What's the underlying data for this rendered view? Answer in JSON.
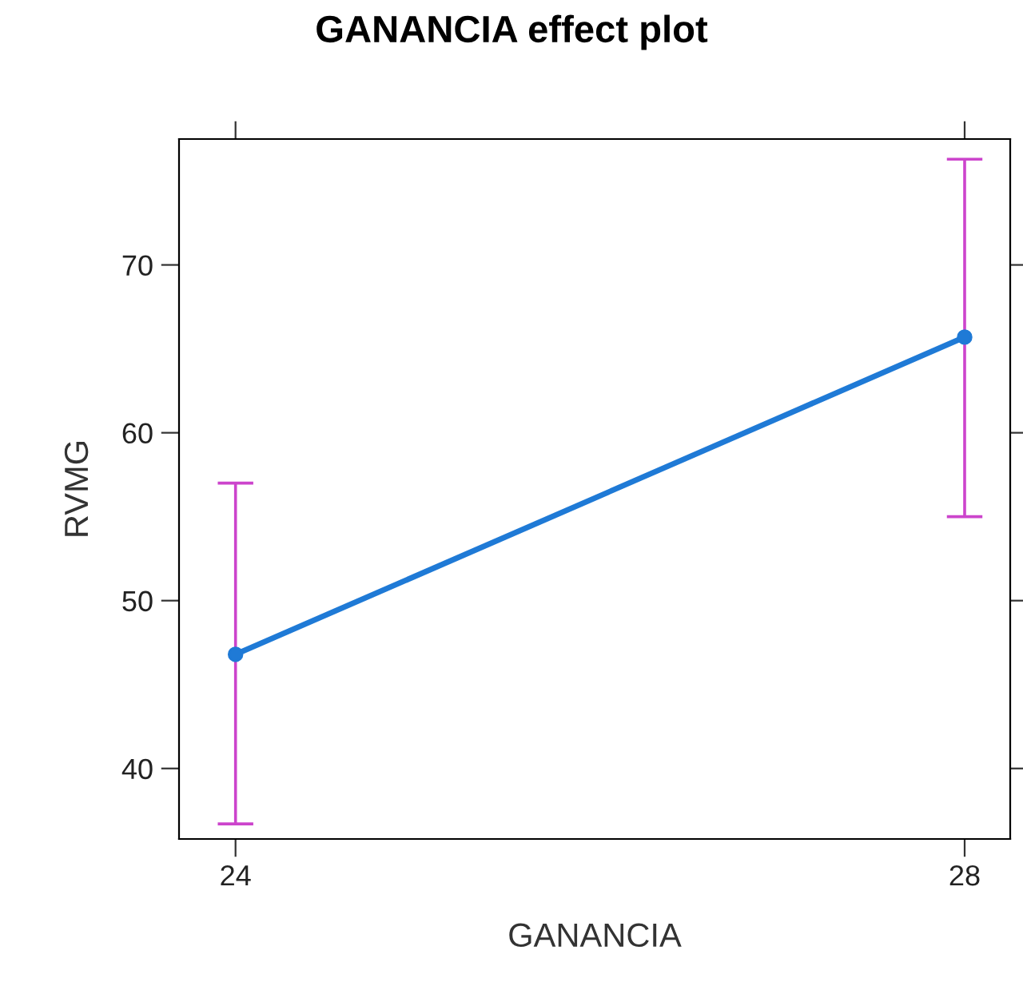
{
  "chart_data": {
    "type": "line",
    "title": "GANANCIA effect plot",
    "xlabel": "GANANCIA",
    "ylabel": "RVMG",
    "x": [
      24,
      28
    ],
    "series": [
      {
        "color": "#1f7ad6",
        "values": [
          46.8,
          65.7
        ],
        "errors": [
          [
            36.7,
            57.0
          ],
          [
            55.0,
            76.3
          ]
        ]
      }
    ],
    "xlim": [
      23.69,
      28.25
    ],
    "xticks": [
      24,
      28
    ],
    "ylim": [
      35.8,
      77.5
    ],
    "yticks": [
      40,
      50,
      60,
      70
    ],
    "marker": "circle",
    "line_style": "solid",
    "grid": false,
    "legend": false
  }
}
